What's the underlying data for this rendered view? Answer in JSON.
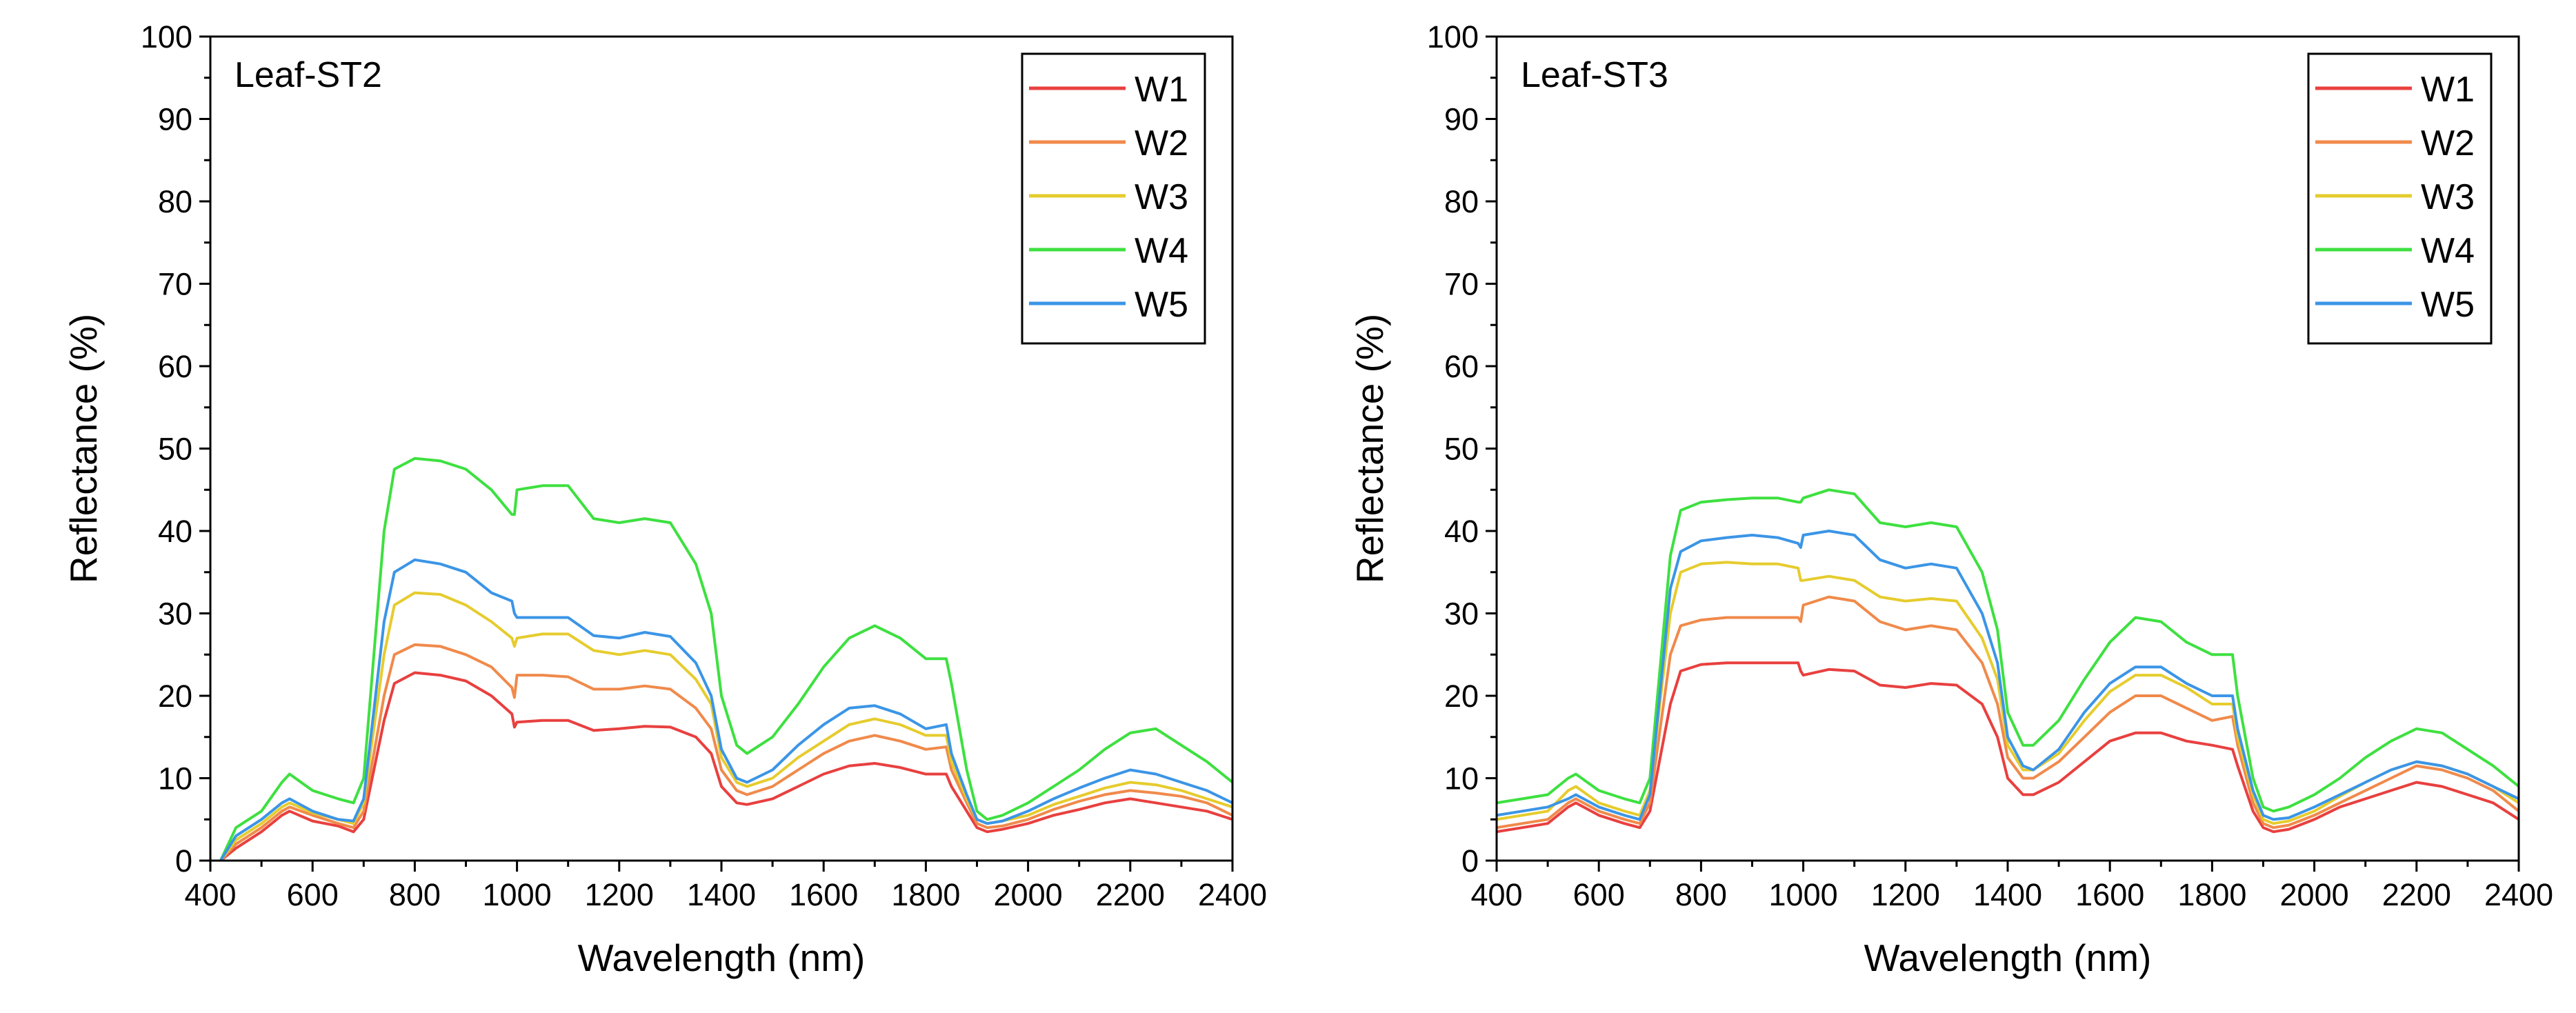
{
  "chart_data": [
    {
      "type": "line",
      "panel_label": "Leaf-ST2",
      "xlabel": "Wavelength (nm)",
      "ylabel": "Reflectance (%)",
      "xlim": [
        400,
        2400
      ],
      "ylim": [
        0,
        100
      ],
      "xticks": [
        400,
        600,
        800,
        1000,
        1200,
        1400,
        1600,
        1800,
        2000,
        2200,
        2400
      ],
      "yticks": [
        0,
        10,
        20,
        30,
        40,
        50,
        60,
        70,
        80,
        90,
        100
      ],
      "grid": false,
      "legend_position": "top-right",
      "x": [
        420,
        450,
        500,
        540,
        555,
        600,
        650,
        680,
        700,
        740,
        760,
        800,
        850,
        900,
        950,
        990,
        995,
        1000,
        1050,
        1100,
        1150,
        1200,
        1250,
        1300,
        1350,
        1380,
        1400,
        1430,
        1450,
        1500,
        1550,
        1600,
        1650,
        1700,
        1750,
        1800,
        1840,
        1850,
        1880,
        1900,
        1920,
        1950,
        2000,
        2050,
        2100,
        2150,
        2200,
        2250,
        2300,
        2350,
        2400
      ],
      "series": [
        {
          "name": "W1",
          "color": "#e8403f",
          "values": [
            0,
            1.5,
            3.5,
            5.5,
            6.0,
            4.8,
            4.2,
            3.5,
            5.0,
            17.0,
            21.5,
            22.8,
            22.5,
            21.8,
            20.0,
            17.8,
            16.2,
            16.8,
            17.0,
            17.0,
            15.8,
            16.0,
            16.3,
            16.2,
            15.0,
            13.0,
            9.0,
            7.0,
            6.8,
            7.5,
            9.0,
            10.5,
            11.5,
            11.8,
            11.3,
            10.5,
            10.5,
            9.0,
            6.0,
            4.0,
            3.5,
            3.8,
            4.5,
            5.5,
            6.2,
            7.0,
            7.5,
            7.0,
            6.5,
            6.0,
            5.0
          ]
        },
        {
          "name": "W2",
          "color": "#f08a4b",
          "values": [
            0,
            2.0,
            4.0,
            6.0,
            6.5,
            5.5,
            4.5,
            4.0,
            6.0,
            20.0,
            25.0,
            26.2,
            26.0,
            25.0,
            23.5,
            21.0,
            19.8,
            22.5,
            22.5,
            22.3,
            20.8,
            20.8,
            21.2,
            20.8,
            18.5,
            16.0,
            11.0,
            8.5,
            8.0,
            9.0,
            11.0,
            13.0,
            14.5,
            15.2,
            14.5,
            13.5,
            13.8,
            11.0,
            7.0,
            4.5,
            4.0,
            4.2,
            5.0,
            6.2,
            7.2,
            8.0,
            8.5,
            8.2,
            7.8,
            7.0,
            5.5
          ]
        },
        {
          "name": "W3",
          "color": "#e6cc2e",
          "values": [
            0,
            2.5,
            4.5,
            6.5,
            7.0,
            5.8,
            5.0,
            4.5,
            7.0,
            25.0,
            31.0,
            32.5,
            32.3,
            31.0,
            29.0,
            27.0,
            26.0,
            27.0,
            27.5,
            27.5,
            25.5,
            25.0,
            25.5,
            25.0,
            22.0,
            19.0,
            12.5,
            9.5,
            9.0,
            10.0,
            12.5,
            14.5,
            16.5,
            17.2,
            16.5,
            15.2,
            15.2,
            12.0,
            7.5,
            5.0,
            4.5,
            4.8,
            5.5,
            6.8,
            7.8,
            8.8,
            9.5,
            9.2,
            8.5,
            7.5,
            6.5
          ]
        },
        {
          "name": "W4",
          "color": "#3ee040",
          "values": [
            0,
            4.0,
            6.0,
            9.5,
            10.5,
            8.5,
            7.5,
            7.0,
            10.0,
            40.0,
            47.5,
            48.8,
            48.5,
            47.5,
            45.0,
            42.0,
            42.0,
            45.0,
            45.5,
            45.5,
            41.5,
            41.0,
            41.5,
            41.0,
            36.0,
            30.0,
            20.0,
            14.0,
            13.0,
            15.0,
            19.0,
            23.5,
            27.0,
            28.5,
            27.0,
            24.5,
            24.5,
            21.5,
            11.0,
            6.0,
            5.0,
            5.5,
            7.0,
            9.0,
            11.0,
            13.5,
            15.5,
            16.0,
            14.0,
            12.0,
            9.5
          ]
        },
        {
          "name": "W5",
          "color": "#3b95e6",
          "values": [
            0,
            3.0,
            5.0,
            7.0,
            7.5,
            6.0,
            5.0,
            4.8,
            7.5,
            29.0,
            35.0,
            36.5,
            36.0,
            35.0,
            32.5,
            31.5,
            30.0,
            29.5,
            29.5,
            29.5,
            27.3,
            27.0,
            27.7,
            27.2,
            24.0,
            20.0,
            13.5,
            10.0,
            9.5,
            11.0,
            14.0,
            16.5,
            18.5,
            18.8,
            17.8,
            16.0,
            16.5,
            13.0,
            8.0,
            5.0,
            4.5,
            4.8,
            6.0,
            7.5,
            8.8,
            10.0,
            11.0,
            10.5,
            9.5,
            8.5,
            7.0
          ]
        }
      ]
    },
    {
      "type": "line",
      "panel_label": "Leaf-ST3",
      "xlabel": "Wavelength (nm)",
      "ylabel": "Reflectance (%)",
      "xlim": [
        400,
        2400
      ],
      "ylim": [
        0,
        100
      ],
      "xticks": [
        400,
        600,
        800,
        1000,
        1200,
        1400,
        1600,
        1800,
        2000,
        2200,
        2400
      ],
      "yticks": [
        0,
        10,
        20,
        30,
        40,
        50,
        60,
        70,
        80,
        90,
        100
      ],
      "grid": false,
      "legend_position": "top-right",
      "x": [
        400,
        450,
        500,
        540,
        555,
        600,
        650,
        680,
        700,
        740,
        760,
        800,
        850,
        900,
        950,
        990,
        995,
        1000,
        1050,
        1100,
        1150,
        1200,
        1250,
        1300,
        1350,
        1380,
        1400,
        1430,
        1450,
        1500,
        1550,
        1600,
        1650,
        1700,
        1750,
        1800,
        1840,
        1850,
        1880,
        1900,
        1920,
        1950,
        2000,
        2050,
        2100,
        2150,
        2200,
        2250,
        2300,
        2350,
        2400
      ],
      "series": [
        {
          "name": "W1",
          "color": "#e8403f",
          "values": [
            3.5,
            4.0,
            4.5,
            6.5,
            7.0,
            5.5,
            4.5,
            4.0,
            6.0,
            19.0,
            23.0,
            23.8,
            24.0,
            24.0,
            24.0,
            24.0,
            23.0,
            22.5,
            23.2,
            23.0,
            21.3,
            21.0,
            21.5,
            21.3,
            19.0,
            15.0,
            10.0,
            8.0,
            8.0,
            9.5,
            12.0,
            14.5,
            15.5,
            15.5,
            14.5,
            14.0,
            13.5,
            11.5,
            6.0,
            4.0,
            3.5,
            3.8,
            5.0,
            6.5,
            7.5,
            8.5,
            9.5,
            9.0,
            8.0,
            7.0,
            5.0
          ]
        },
        {
          "name": "W2",
          "color": "#f08a4b",
          "values": [
            4.0,
            4.5,
            5.0,
            7.0,
            7.5,
            6.0,
            5.0,
            4.5,
            7.0,
            25.0,
            28.5,
            29.2,
            29.5,
            29.5,
            29.5,
            29.5,
            29.0,
            31.0,
            32.0,
            31.5,
            29.0,
            28.0,
            28.5,
            28.0,
            24.0,
            19.0,
            12.5,
            10.0,
            10.0,
            12.0,
            15.0,
            18.0,
            20.0,
            20.0,
            18.5,
            17.0,
            17.5,
            14.0,
            7.0,
            4.5,
            4.0,
            4.3,
            5.5,
            7.0,
            8.5,
            10.0,
            11.5,
            11.0,
            10.0,
            8.5,
            6.0
          ]
        },
        {
          "name": "W3",
          "color": "#e6cc2e",
          "values": [
            5.0,
            5.5,
            6.0,
            8.5,
            9.0,
            7.0,
            6.0,
            5.5,
            8.5,
            30.0,
            35.0,
            36.0,
            36.2,
            36.0,
            36.0,
            35.5,
            34.0,
            34.0,
            34.5,
            34.0,
            32.0,
            31.5,
            31.8,
            31.5,
            27.0,
            22.0,
            14.0,
            11.0,
            11.0,
            13.0,
            17.0,
            20.5,
            22.5,
            22.5,
            21.0,
            19.0,
            19.0,
            15.0,
            8.0,
            5.0,
            4.5,
            4.8,
            6.0,
            7.8,
            9.5,
            11.0,
            12.0,
            11.5,
            10.5,
            9.0,
            7.0
          ]
        },
        {
          "name": "W4",
          "color": "#3ee040",
          "values": [
            7.0,
            7.5,
            8.0,
            10.0,
            10.5,
            8.5,
            7.5,
            7.0,
            10.0,
            37.0,
            42.5,
            43.5,
            43.8,
            44.0,
            44.0,
            43.5,
            43.5,
            44.0,
            45.0,
            44.5,
            41.0,
            40.5,
            41.0,
            40.5,
            35.0,
            28.0,
            18.0,
            14.0,
            14.0,
            17.0,
            22.0,
            26.5,
            29.5,
            29.0,
            26.5,
            25.0,
            25.0,
            20.0,
            10.0,
            6.5,
            6.0,
            6.5,
            8.0,
            10.0,
            12.5,
            14.5,
            16.0,
            15.5,
            13.5,
            11.5,
            9.0
          ]
        },
        {
          "name": "W5",
          "color": "#3b95e6",
          "values": [
            5.5,
            6.0,
            6.5,
            7.5,
            8.0,
            6.5,
            5.5,
            5.0,
            8.0,
            33.0,
            37.5,
            38.8,
            39.2,
            39.5,
            39.2,
            38.5,
            38.0,
            39.5,
            40.0,
            39.5,
            36.5,
            35.5,
            36.0,
            35.5,
            30.0,
            24.0,
            15.0,
            11.5,
            11.0,
            13.5,
            18.0,
            21.5,
            23.5,
            23.5,
            21.5,
            20.0,
            20.0,
            16.0,
            8.5,
            5.5,
            5.0,
            5.2,
            6.5,
            8.0,
            9.5,
            11.0,
            12.0,
            11.5,
            10.5,
            9.0,
            7.5
          ]
        }
      ]
    }
  ]
}
